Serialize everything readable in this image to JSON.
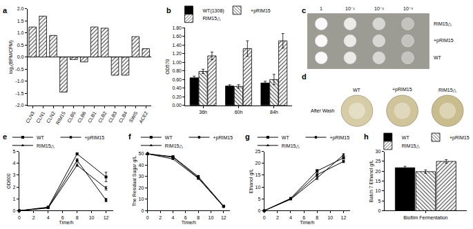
{
  "chart_data": [
    {
      "title": "a",
      "type": "bar",
      "categories": [
        "CLN3",
        "CLN1",
        "CLN2",
        "RIM15",
        "CLB5",
        "CLB6",
        "CLB1",
        "CLB2",
        "CLB3",
        "CLB4",
        "SWI5",
        "ACE2"
      ],
      "values": [
        1.25,
        1.7,
        0.9,
        -1.45,
        -0.1,
        -0.2,
        1.25,
        1.2,
        -0.75,
        -0.75,
        0.85,
        0.35
      ],
      "color": "#ffffff",
      "ylabel": "log₂(BFM/CFM)",
      "ylim": [
        -2,
        2
      ],
      "yticks": [
        {
          "value": -2,
          "label": "-2.0"
        },
        {
          "value": -1.5,
          "label": "-1.5"
        },
        {
          "value": -1,
          "label": "-1.0"
        },
        {
          "value": -0.5,
          "label": "-0.5"
        },
        {
          "value": 0,
          "label": "0.0"
        },
        {
          "value": 0.5,
          "label": "0.5"
        },
        {
          "value": 1,
          "label": "1.0"
        },
        {
          "value": 1.5,
          "label": "1.5"
        },
        {
          "value": 2,
          "label": "2.0"
        }
      ],
      "grid": false
    },
    {
      "title": "b",
      "type": "bar",
      "categories": [
        "36h",
        "60h",
        "84h"
      ],
      "series": [
        {
          "name": "WT(1308)",
          "color": "#000000",
          "values": [
            0.64,
            0.45,
            0.52
          ],
          "errors": [
            0.04,
            0.03,
            0.04
          ]
        },
        {
          "name": "+pRIM15",
          "color": "#ffffff",
          "values": [
            0.79,
            0.44,
            0.6
          ],
          "errors": [
            0.05,
            0.04,
            0.12
          ]
        },
        {
          "name": "RIM15△",
          "color": "#ffffff",
          "values": [
            1.15,
            1.32,
            1.5
          ],
          "errors": [
            0.09,
            0.18,
            0.17
          ]
        }
      ],
      "ylabel": "OD570",
      "ylim": [
        0,
        1.8
      ],
      "yticks": [
        {
          "value": 0,
          "label": "0.00"
        },
        {
          "value": 0.2,
          "label": "0.20"
        },
        {
          "value": 0.4,
          "label": "0.40"
        },
        {
          "value": 0.6,
          "label": "0.60"
        },
        {
          "value": 0.8,
          "label": "0.80"
        },
        {
          "value": 1,
          "label": "1.00"
        },
        {
          "value": 1.2,
          "label": "1.20"
        },
        {
          "value": 1.4,
          "label": "1.40"
        },
        {
          "value": 1.6,
          "label": "1.60"
        },
        {
          "value": 1.8,
          "label": "1.80"
        }
      ],
      "legend": "top",
      "grid": false
    },
    {
      "title": "e",
      "type": "line",
      "x": [
        0,
        4,
        8,
        12
      ],
      "series": [
        {
          "name": "WT",
          "color": "#000000",
          "marker": "square",
          "values": [
            0,
            0.3,
            4.8,
            2.85
          ],
          "errors": [
            0,
            0.05,
            0.08,
            0.4
          ]
        },
        {
          "name": "+pRIM15",
          "color": "#000000",
          "marker": "circle",
          "values": [
            0,
            0.25,
            4.25,
            0.9
          ],
          "errors": [
            0,
            0.03,
            0.15,
            0.15
          ]
        },
        {
          "name": "RIM15△",
          "color": "#000000",
          "marker": "triangle",
          "values": [
            0,
            0.22,
            3.85,
            1.9
          ],
          "errors": [
            0,
            0.03,
            0.1,
            0.15
          ]
        }
      ],
      "xlabel": "Time/h",
      "ylabel": "OD600",
      "xlim": [
        0,
        13
      ],
      "xticks": [
        0,
        2,
        4,
        6,
        8,
        10,
        12
      ],
      "ylim": [
        0,
        5
      ],
      "yticks": [
        0,
        1,
        2,
        3,
        4,
        5
      ],
      "legend": "top",
      "grid": false
    },
    {
      "title": "f",
      "type": "line",
      "x": [
        0,
        4,
        8,
        12
      ],
      "series": [
        {
          "name": "WT",
          "color": "#000000",
          "marker": "square",
          "values": [
            50,
            47.5,
            30,
            4
          ],
          "errors": [
            0,
            0.5,
            1,
            0.5
          ]
        },
        {
          "name": "+pRIM15",
          "color": "#000000",
          "marker": "circle",
          "values": [
            50,
            47,
            29,
            3.5
          ],
          "errors": [
            0,
            0.5,
            1,
            0.5
          ]
        },
        {
          "name": "RIM15△",
          "color": "#000000",
          "marker": "triangle",
          "values": [
            50,
            45.5,
            28.5,
            3.5
          ],
          "errors": [
            0,
            0.5,
            1,
            0.5
          ]
        }
      ],
      "xlabel": "Time/h",
      "ylabel": "The Residual Sugar g/L",
      "xlim": [
        0,
        13
      ],
      "xticks": [
        0,
        2,
        4,
        6,
        8,
        10,
        12
      ],
      "ylim": [
        0,
        52
      ],
      "yticks": [
        0,
        10,
        20,
        30,
        40,
        50
      ],
      "legend": "top",
      "grid": false
    },
    {
      "title": "g",
      "type": "line",
      "x": [
        0,
        4,
        8,
        12
      ],
      "series": [
        {
          "name": "WT",
          "color": "#000000",
          "marker": "square",
          "values": [
            0,
            5.2,
            16.8,
            22.3
          ],
          "errors": [
            0,
            0.3,
            0.6,
            0.5
          ]
        },
        {
          "name": "+pRIM15",
          "color": "#000000",
          "marker": "circle",
          "values": [
            0,
            5,
            15.2,
            20.8
          ],
          "errors": [
            0,
            0.3,
            0.7,
            0.5
          ]
        },
        {
          "name": "RIM15△",
          "color": "#000000",
          "marker": "triangle",
          "values": [
            0,
            4.8,
            13.8,
            23.6
          ],
          "errors": [
            0,
            0.3,
            0.7,
            0.5
          ]
        }
      ],
      "xlabel": "Time/h",
      "ylabel": "Ethanol g/L",
      "xlim": [
        0,
        13
      ],
      "xticks": [
        0,
        2,
        4,
        6,
        8,
        10,
        12
      ],
      "ylim": [
        0,
        25
      ],
      "yticks": [
        0,
        5,
        10,
        15,
        20,
        25
      ],
      "legend": "top",
      "grid": false
    },
    {
      "title": "h",
      "type": "bar",
      "categories": [
        "Biofilm Fermentation"
      ],
      "series": [
        {
          "name": "WT",
          "color": "#000000",
          "values": [
            21.8
          ],
          "errors": [
            0.7
          ]
        },
        {
          "name": "+pRIM15",
          "color": "#ffffff",
          "values": [
            19.8
          ],
          "errors": [
            0.9
          ]
        },
        {
          "name": "RIM15△",
          "color": "#ffffff",
          "values": [
            25
          ],
          "errors": [
            0.9
          ]
        }
      ],
      "ylabel": "Batch 7 Ethanol g/L",
      "ylim": [
        0,
        30
      ],
      "yticks": [
        0,
        5,
        10,
        15,
        20,
        25,
        30
      ],
      "legend": "top",
      "grid": false
    }
  ],
  "photo_panels": [
    {
      "title": "c",
      "columns": [
        "1",
        "10⁻¹",
        "10⁻²",
        "10⁻³"
      ],
      "rows": [
        "RIM15△",
        "+pRIM15",
        "WT"
      ]
    },
    {
      "title": "d",
      "caption": "After Wash",
      "labels": [
        "WT",
        "+pRIM15",
        "RIM15△"
      ]
    }
  ]
}
